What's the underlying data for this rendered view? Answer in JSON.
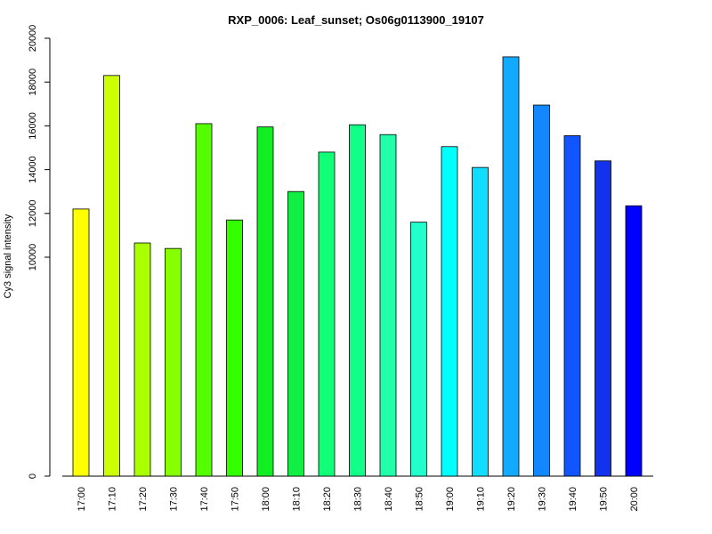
{
  "chart_data": {
    "type": "bar",
    "title": "RXP_0006: Leaf_sunset; Os06g0113900_19107",
    "xlabel": "",
    "ylabel": "Cy3 signal intensity",
    "ylim": [
      0,
      20000
    ],
    "y_ticks": [
      0,
      10000,
      12000,
      14000,
      16000,
      18000,
      20000
    ],
    "y_tick_labels": [
      "0",
      "10000",
      "12000",
      "14000",
      "16000",
      "18000",
      "20000"
    ],
    "grid": false,
    "categories": [
      "17:00",
      "17:10",
      "17:20",
      "17:30",
      "17:40",
      "17:50",
      "18:00",
      "18:10",
      "18:20",
      "18:30",
      "18:40",
      "18:50",
      "19:00",
      "19:10",
      "19:20",
      "19:30",
      "19:40",
      "19:50",
      "20:00"
    ],
    "values": [
      12200,
      18300,
      10650,
      10400,
      16100,
      11700,
      15950,
      13000,
      14800,
      16050,
      15600,
      11600,
      15050,
      14100,
      19150,
      16950,
      15550,
      14400,
      12350
    ],
    "colors": [
      "#ffff00",
      "#ccff00",
      "#aaff00",
      "#88ff00",
      "#55ff00",
      "#33ff00",
      "#11ee22",
      "#11ee44",
      "#11ff77",
      "#11ff88",
      "#22ffaa",
      "#22ffcc",
      "#00ffff",
      "#11ddff",
      "#11aaff",
      "#1188ff",
      "#1155ff",
      "#1133ee",
      "#0000ff"
    ]
  }
}
